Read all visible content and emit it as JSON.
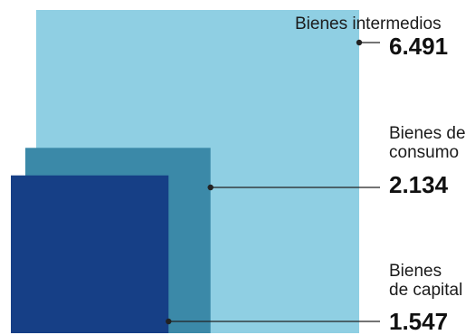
{
  "chart_data": {
    "type": "area",
    "title": "",
    "categories": [
      "Bienes intermedios",
      "Bienes de consumo",
      "Bienes de capital"
    ],
    "category_lines": [
      [
        "Bienes intermedios"
      ],
      [
        "Bienes de",
        "consumo"
      ],
      [
        "Bienes",
        "de capital"
      ]
    ],
    "values": [
      6491,
      2134,
      1547
    ],
    "value_labels": [
      "6.491",
      "2.134",
      "1.547"
    ],
    "colors": [
      "#8fcfe3",
      "#3b89a8",
      "#163f86"
    ],
    "label_color": "#1b1b1b",
    "legend": "right",
    "grid": false
  }
}
